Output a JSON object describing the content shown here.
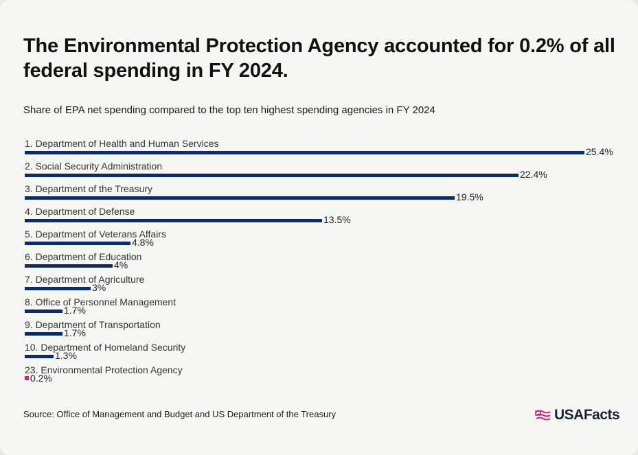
{
  "title": "The Environmental Protection Agency accounted for 0.2% of all federal spending in FY 2024.",
  "subtitle": "Share of EPA net spending compared to the top ten highest spending agencies in FY 2024",
  "source": "Source: Office of Management and Budget and US Department of the Treasury",
  "logo": {
    "text": "USAFacts",
    "icon": "flag-icon"
  },
  "colors": {
    "bar": "#0a2c6e",
    "highlight": "#d6217a",
    "background": "#f6f6f2"
  },
  "chart_data": {
    "type": "bar",
    "orientation": "horizontal",
    "categories": [
      "1. Department of Health and Human Services",
      "2. Social Security Administration",
      "3. Department of the Treasury",
      "4. Department of Defense",
      "5. Department of Veterans Affairs",
      "6. Department of Education",
      "7. Department of Agriculture",
      "8. Office of Personnel Management",
      "9. Department of Transportation",
      "10. Department of Homeland Security",
      "23. Environmental Protection Agency"
    ],
    "values": [
      25.4,
      22.4,
      19.5,
      13.5,
      4.8,
      4,
      3,
      1.7,
      1.7,
      1.3,
      0.2
    ],
    "value_labels": [
      "25.4%",
      "22.4%",
      "19.5%",
      "13.5%",
      "4.8%",
      "4%",
      "3%",
      "1.7%",
      "1.7%",
      "1.3%",
      "0.2%"
    ],
    "highlight_index": 10,
    "xlim": [
      0,
      25.4
    ],
    "grid": false,
    "legend": "none"
  }
}
